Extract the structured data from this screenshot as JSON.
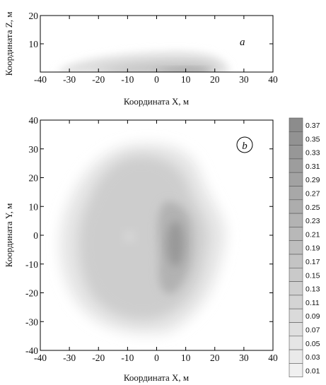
{
  "chart_data": [
    {
      "type": "contour",
      "panel_label": "a",
      "xlabel": "Координата X, м",
      "ylabel": "Координата Z, м",
      "xlim": [
        -40,
        40
      ],
      "ylim": [
        0,
        20
      ],
      "xticks": [
        "-40",
        "-30",
        "-20",
        "-10",
        "0",
        "10",
        "20",
        "30",
        "40"
      ],
      "yticks": [
        "10",
        "20"
      ],
      "peak": {
        "x": 8,
        "z": 1,
        "value": 0.37
      }
    },
    {
      "type": "contour",
      "panel_label": "b",
      "xlabel": "Координата X, м",
      "ylabel": "Координата Y, м",
      "xlim": [
        -40,
        40
      ],
      "ylim": [
        -40,
        40
      ],
      "xticks": [
        "-40",
        "-30",
        "-20",
        "-10",
        "0",
        "10",
        "20",
        "30",
        "40"
      ],
      "yticks": [
        "-40",
        "-30",
        "-20",
        "-10",
        "0",
        "10",
        "20",
        "30",
        "40"
      ],
      "peak": {
        "x": 6,
        "y": -2,
        "value": 0.37
      }
    }
  ],
  "colorbar": {
    "levels": [
      "0.37",
      "0.35",
      "0.33",
      "0.31",
      "0.29",
      "0.27",
      "0.25",
      "0.23",
      "0.21",
      "0.19",
      "0.17",
      "0.15",
      "0.13",
      "0.11",
      "0.09",
      "0.07",
      "0.05",
      "0.03",
      "0.01"
    ],
    "color_high": "#8c8c8c",
    "color_low": "#f0f0f0"
  }
}
